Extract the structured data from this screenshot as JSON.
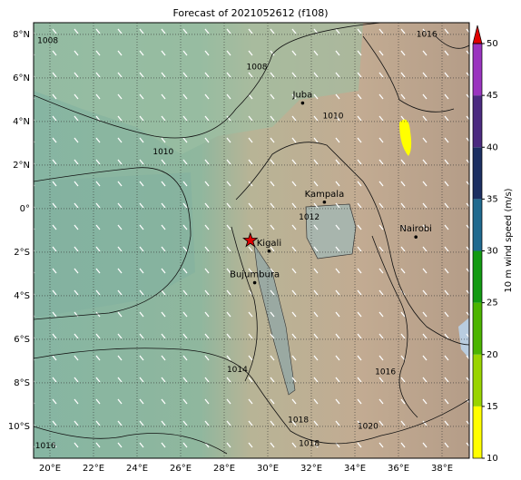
{
  "title": "Forecast of 2021052612 (f108)",
  "map": {
    "lon_range": [
      19.25,
      39.25
    ],
    "lat_range": [
      -11.46,
      8.54
    ],
    "lon_ticks": [
      {
        "value": 20,
        "label": "20°E"
      },
      {
        "value": 22,
        "label": "22°E"
      },
      {
        "value": 24,
        "label": "24°E"
      },
      {
        "value": 26,
        "label": "26°E"
      },
      {
        "value": 28,
        "label": "28°E"
      },
      {
        "value": 30,
        "label": "30°E"
      },
      {
        "value": 32,
        "label": "32°E"
      },
      {
        "value": 34,
        "label": "34°E"
      },
      {
        "value": 36,
        "label": "36°E"
      },
      {
        "value": 38,
        "label": "38°E"
      }
    ],
    "lat_ticks": [
      {
        "value": 8,
        "label": "8°N"
      },
      {
        "value": 6,
        "label": "6°N"
      },
      {
        "value": 4,
        "label": "4°N"
      },
      {
        "value": 2,
        "label": "2°N"
      },
      {
        "value": 0,
        "label": "0°"
      },
      {
        "value": -2,
        "label": "2°S"
      },
      {
        "value": -4,
        "label": "4°S"
      },
      {
        "value": -6,
        "label": "6°S"
      },
      {
        "value": -8,
        "label": "8°S"
      },
      {
        "value": -10,
        "label": "10°S"
      }
    ],
    "cities": [
      {
        "name": "Juba",
        "lon": 31.6,
        "lat": 4.85
      },
      {
        "name": "Kampala",
        "lon": 32.6,
        "lat": 0.3
      },
      {
        "name": "Nairobi",
        "lon": 36.8,
        "lat": -1.3
      },
      {
        "name": "Kigali",
        "lon": 30.06,
        "lat": -1.95
      },
      {
        "name": "Bujumbura",
        "lon": 29.4,
        "lat": -3.4
      }
    ],
    "star": {
      "lon": 29.2,
      "lat": -1.46
    },
    "contour_labels": [
      {
        "text": "1008",
        "lon": 19.9,
        "lat": 7.7
      },
      {
        "text": "1008",
        "lon": 29.5,
        "lat": 6.5
      },
      {
        "text": "1010",
        "lon": 25.2,
        "lat": 2.6
      },
      {
        "text": "1010",
        "lon": 33.0,
        "lat": 4.25
      },
      {
        "text": "1012",
        "lon": 31.9,
        "lat": -0.4
      },
      {
        "text": "1014",
        "lon": 28.6,
        "lat": -7.4
      },
      {
        "text": "1016",
        "lon": 35.4,
        "lat": -7.5
      },
      {
        "text": "1018",
        "lon": 31.4,
        "lat": -9.7
      },
      {
        "text": "1018",
        "lon": 31.9,
        "lat": -10.8
      },
      {
        "text": "1020",
        "lon": 34.6,
        "lat": -10.0
      },
      {
        "text": "1016",
        "lon": 19.8,
        "lat": -10.9
      },
      {
        "text": "1016",
        "lon": 37.3,
        "lat": 8.0
      }
    ]
  },
  "colorbar": {
    "label": "10 m wind speed (m/s)",
    "range": [
      10,
      50
    ],
    "ticks": [
      10,
      15,
      20,
      25,
      30,
      35,
      40,
      45,
      50
    ],
    "colors": [
      "#ffff00",
      "#9ad400",
      "#4cb400",
      "#129a12",
      "#1f6a8f",
      "#1c2f62",
      "#4b2a80",
      "#9a34bf"
    ],
    "extend_color": "#e00000"
  }
}
